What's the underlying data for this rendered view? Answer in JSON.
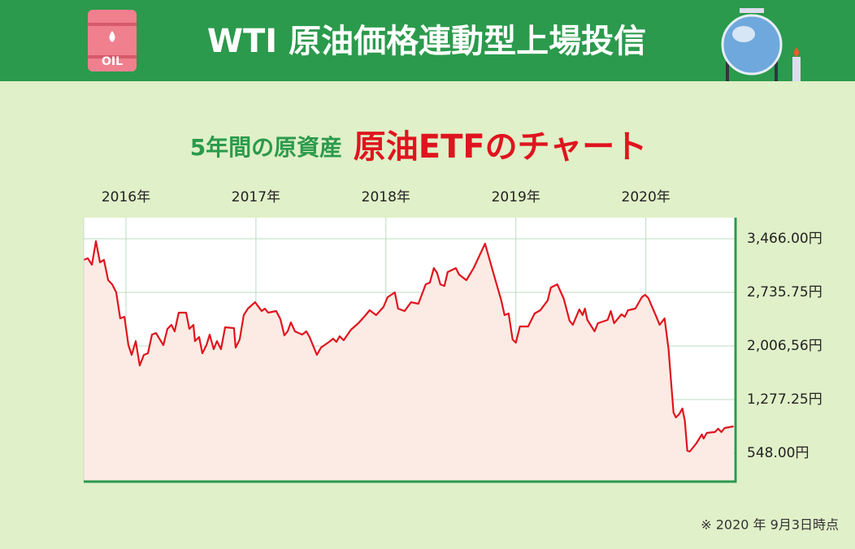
{
  "chart_data": {
    "type": "line",
    "title": "WTI 原油価格連動型上場投信",
    "badge": "OIL",
    "subtitle": "5年間の原資産",
    "subtitle_highlight": "原油ETFのチャート",
    "note": "※ 2020 年 9月3日時点",
    "color": "#e0141e",
    "fill_color": "#fbebe4",
    "grid": true,
    "xlim": [
      2015.675,
      2020.69
    ],
    "xticks": [
      {
        "value": 2016,
        "label": "2016年"
      },
      {
        "value": 2017,
        "label": "2017年"
      },
      {
        "value": 2018,
        "label": "2018年"
      },
      {
        "value": 2019,
        "label": "2019年"
      },
      {
        "value": 2020,
        "label": "2020年"
      }
    ],
    "ylim": [
      161,
      3753
    ],
    "yticks": [
      {
        "value": 548,
        "label": "548.00円"
      },
      {
        "value": 1277.25,
        "label": "1,277.25円"
      },
      {
        "value": 2006.56,
        "label": "2,006,56円"
      },
      {
        "value": 2735.75,
        "label": "2,735.75円"
      },
      {
        "value": 3466,
        "label": "3,466.00円"
      }
    ],
    "x": [
      2015.675,
      2015.706,
      2015.738,
      2015.769,
      2015.8,
      2015.831,
      2015.863,
      2015.894,
      2015.925,
      2015.956,
      2015.988,
      2016.019,
      2016.044,
      2016.075,
      2016.106,
      2016.138,
      2016.169,
      2016.2,
      2016.231,
      2016.288,
      2016.319,
      2016.35,
      2016.375,
      2016.406,
      2016.463,
      2016.488,
      2016.519,
      2016.531,
      2016.563,
      2016.588,
      2016.619,
      2016.644,
      2016.675,
      2016.7,
      2016.731,
      2016.763,
      2016.831,
      2016.844,
      2016.875,
      2016.906,
      2016.938,
      2016.994,
      2017.044,
      2017.069,
      2017.094,
      2017.156,
      2017.188,
      2017.219,
      2017.244,
      2017.269,
      2017.3,
      2017.356,
      2017.388,
      2017.413,
      2017.469,
      2017.5,
      2017.563,
      2017.594,
      2017.619,
      2017.644,
      2017.675,
      2017.731,
      2017.788,
      2017.844,
      2017.875,
      2017.925,
      2017.981,
      2018.013,
      2018.069,
      2018.094,
      2018.144,
      2018.194,
      2018.25,
      2018.306,
      2018.338,
      2018.369,
      2018.394,
      2018.419,
      2018.45,
      2018.475,
      2018.538,
      2018.563,
      2018.619,
      2018.675,
      2018.763,
      2018.825,
      2018.888,
      2018.913,
      2018.944,
      2018.975,
      2019.0,
      2019.031,
      2019.094,
      2019.144,
      2019.188,
      2019.244,
      2019.269,
      2019.319,
      2019.369,
      2019.413,
      2019.438,
      2019.488,
      2019.513,
      2019.531,
      2019.55,
      2019.606,
      2019.631,
      2019.706,
      2019.731,
      2019.756,
      2019.813,
      2019.838,
      2019.863,
      2019.919,
      2019.969,
      2019.994,
      2020.019,
      2020.081,
      2020.106,
      2020.144,
      2020.175,
      2020.194,
      2020.213,
      2020.231,
      2020.256,
      2020.281,
      2020.3,
      2020.319,
      2020.338,
      2020.388,
      2020.431,
      2020.444,
      2020.469,
      2020.531,
      2020.556,
      2020.581,
      2020.606,
      2020.675
    ],
    "values": [
      3178,
      3200,
      3112,
      3432,
      3145,
      3178,
      2902,
      2846,
      2736,
      2382,
      2404,
      2018,
      1885,
      2073,
      1741,
      1885,
      1907,
      2161,
      2183,
      2018,
      2239,
      2294,
      2206,
      2460,
      2460,
      2239,
      2294,
      2073,
      2128,
      1907,
      2018,
      2161,
      1962,
      2073,
      1962,
      2261,
      2250,
      1985,
      2095,
      2427,
      2515,
      2603,
      2482,
      2515,
      2460,
      2482,
      2371,
      2150,
      2206,
      2327,
      2206,
      2161,
      2206,
      2128,
      1885,
      1985,
      2062,
      2106,
      2062,
      2139,
      2084,
      2228,
      2316,
      2427,
      2493,
      2427,
      2537,
      2670,
      2736,
      2515,
      2482,
      2603,
      2581,
      2846,
      2869,
      3067,
      3001,
      2846,
      2824,
      3012,
      3067,
      2979,
      2902,
      3067,
      3399,
      3012,
      2625,
      2427,
      2449,
      2095,
      2051,
      2272,
      2272,
      2449,
      2493,
      2625,
      2802,
      2846,
      2648,
      2349,
      2294,
      2504,
      2427,
      2515,
      2360,
      2206,
      2316,
      2360,
      2482,
      2316,
      2438,
      2404,
      2493,
      2515,
      2670,
      2703,
      2659,
      2404,
      2294,
      2382,
      1962,
      1520,
      1101,
      1034,
      1078,
      1156,
      990,
      581,
      570,
      681,
      802,
      747,
      824,
      835,
      880,
      835,
      891,
      913
    ]
  }
}
